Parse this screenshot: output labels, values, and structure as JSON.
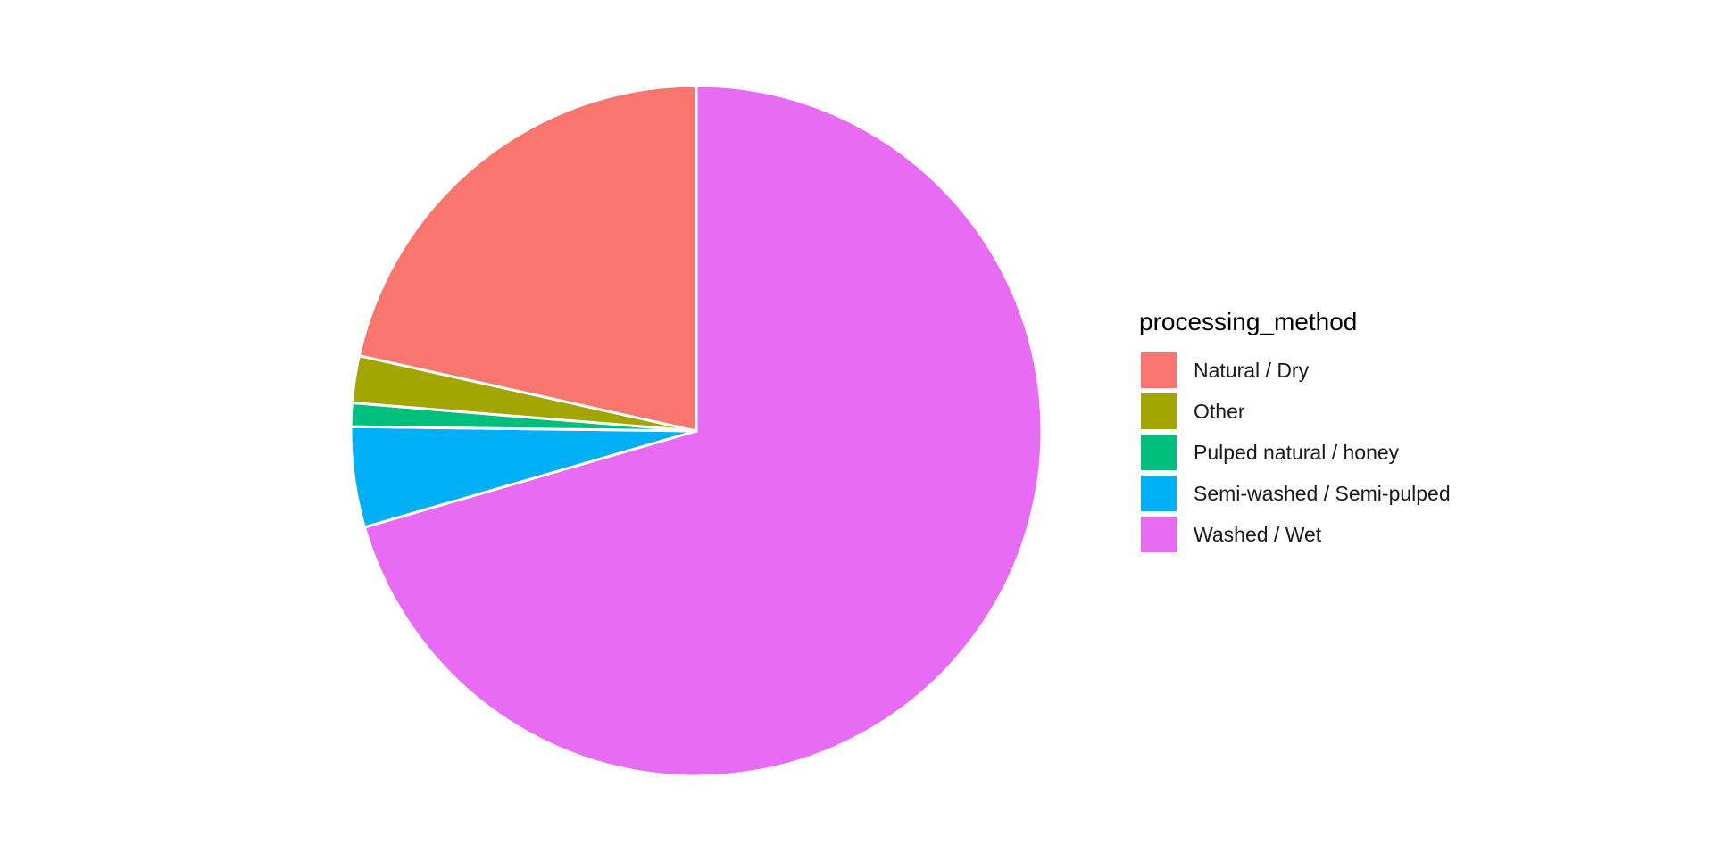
{
  "chart_data": {
    "type": "pie",
    "legend_title": "processing_method",
    "legend_position": "right",
    "start_angle_deg": 0,
    "direction": "clockwise",
    "slices": [
      {
        "label": "Washed / Wet",
        "value": 70.5,
        "color": "#E76BF3"
      },
      {
        "label": "Semi-washed / Semi-pulped",
        "value": 4.7,
        "color": "#00B0F6"
      },
      {
        "label": "Pulped natural / honey",
        "value": 1.1,
        "color": "#00BF7D"
      },
      {
        "label": "Other",
        "value": 2.2,
        "color": "#A3A500"
      },
      {
        "label": "Natural / Dry",
        "value": 21.5,
        "color": "#F8766D"
      }
    ],
    "legend_order": [
      "Natural / Dry",
      "Other",
      "Pulped natural / honey",
      "Semi-washed / Semi-pulped",
      "Washed / Wet"
    ]
  }
}
